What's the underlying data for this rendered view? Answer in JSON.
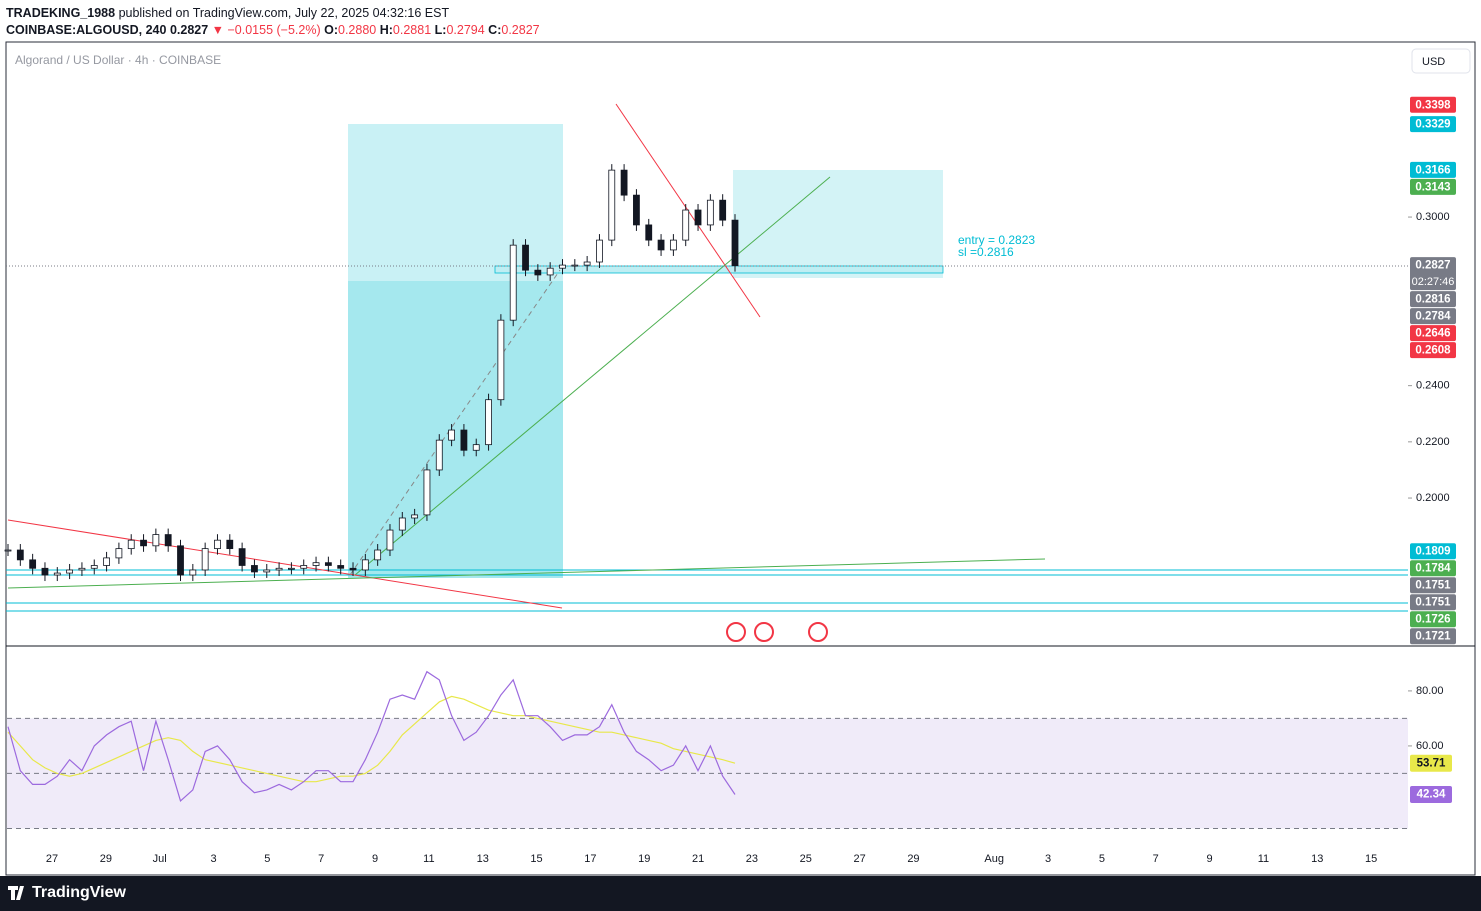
{
  "header": {
    "author": "TRADEKING_1988",
    "published": "published on TradingView.com, July 22, 2025 04:32:16 EST",
    "symbol": "COINBASE:ALGOUSD, 240",
    "last": "0.2827",
    "change": "▼ −0.0155 (−5.2%)",
    "o_label": "O:",
    "open": "0.2880",
    "h_label": "H:",
    "high": "0.2881",
    "l_label": "L:",
    "low": "0.2794",
    "c_label": "C:",
    "close": "0.2827"
  },
  "legend": "Algorand / US Dollar · 4h · COINBASE",
  "currency": "USD",
  "brand": "TradingView",
  "chart_data": {
    "type": "candlestick",
    "values": [
      0.1815,
      0.178,
      0.175,
      0.1726,
      0.1733,
      0.1744,
      0.175,
      0.176,
      0.1787,
      0.182,
      0.185,
      0.183,
      0.187,
      0.183,
      0.1726,
      0.1744,
      0.182,
      0.185,
      0.182,
      0.176,
      0.1737,
      0.1744,
      0.175,
      0.175,
      0.176,
      0.177,
      0.176,
      0.175,
      0.1744,
      0.178,
      0.1815,
      0.1886,
      0.1929,
      0.194,
      0.21,
      0.2206,
      0.2242,
      0.217,
      0.219,
      0.235,
      0.2633,
      0.29,
      0.2811,
      0.2794,
      0.2818,
      0.2829,
      0.2829,
      0.284,
      0.2918,
      0.3167,
      0.3078,
      0.2972,
      0.2918,
      0.2883,
      0.2918,
      0.3025,
      0.2972,
      0.306,
      0.2989,
      0.2827
    ],
    "ylim": [
      0.1477,
      0.3623
    ],
    "yticks": [
      {
        "value": 0.3,
        "label": "0.3000"
      },
      {
        "value": 0.24,
        "label": "0.2400"
      },
      {
        "value": 0.22,
        "label": "0.2200"
      },
      {
        "value": 0.2,
        "label": "0.2000"
      }
    ],
    "price_labels": [
      {
        "value": 0.3398,
        "color": "#f23645"
      },
      {
        "value": 0.3329,
        "color": "#00bcd4"
      },
      {
        "value": 0.3166,
        "color": "#00bcd4"
      },
      {
        "value": 0.3143,
        "color": "#4caf50"
      },
      {
        "value": 0.2827,
        "color": "#787b86",
        "countdown": "02:27:46"
      },
      {
        "value": 0.2816,
        "color": "#787b86"
      },
      {
        "value": 0.2784,
        "color": "#787b86"
      },
      {
        "value": 0.2646,
        "color": "#f23645"
      },
      {
        "value": 0.2608,
        "color": "#f23645"
      },
      {
        "value": 0.1809,
        "color": "#00bcd4"
      },
      {
        "value": 0.1784,
        "color": "#4caf50"
      },
      {
        "value": 0.1751,
        "color": "#787b86"
      },
      {
        "value": 0.1751,
        "color": "#787b86"
      },
      {
        "value": 0.1726,
        "color": "#4caf50"
      },
      {
        "value": 0.1721,
        "color": "#787b86"
      }
    ],
    "annotations": [
      "entry = 0.2823",
      "sl =0.2816"
    ],
    "xticks": [
      "27",
      "29",
      "Jul",
      "3",
      "5",
      "7",
      "9",
      "11",
      "13",
      "15",
      "17",
      "19",
      "21",
      "23",
      "25",
      "27",
      "29",
      "Aug",
      "3",
      "5",
      "7",
      "9",
      "11",
      "13",
      "15"
    ]
  },
  "rsi": {
    "type": "line",
    "color": "#9c6ade",
    "ma_color": "#e8e84a",
    "values": [
      67,
      51,
      46,
      46,
      49,
      55,
      51,
      60,
      64,
      67,
      69,
      51,
      69,
      55,
      40,
      44,
      58,
      60,
      55,
      47,
      43,
      44,
      46,
      44,
      47,
      51,
      51,
      47,
      47,
      55,
      65,
      77,
      78.5,
      77,
      87,
      84,
      71,
      62,
      65,
      71,
      78.5,
      84,
      71,
      71,
      67,
      62,
      64,
      64,
      67,
      75,
      65,
      58,
      55,
      51,
      53,
      60,
      51,
      60,
      49,
      42.34
    ],
    "ma": [
      65,
      60,
      55,
      52,
      50,
      49,
      50,
      52,
      54,
      56,
      58,
      60,
      62,
      63,
      62,
      58,
      55,
      54,
      53,
      52,
      51,
      50,
      49,
      48,
      47,
      47,
      48,
      49,
      49,
      50,
      53,
      58,
      64,
      68,
      72,
      76,
      78,
      77,
      75,
      73,
      72,
      71,
      71,
      70,
      69,
      68,
      67,
      66,
      65,
      65,
      64,
      63,
      62,
      61,
      59,
      58,
      57,
      56,
      55,
      53.71
    ],
    "ylim": [
      25.8,
      95.6
    ],
    "yticks": [
      {
        "value": 80,
        "label": "80.00"
      },
      {
        "value": 60,
        "label": "60.00"
      }
    ],
    "bands": [
      70,
      50,
      30
    ]
  }
}
